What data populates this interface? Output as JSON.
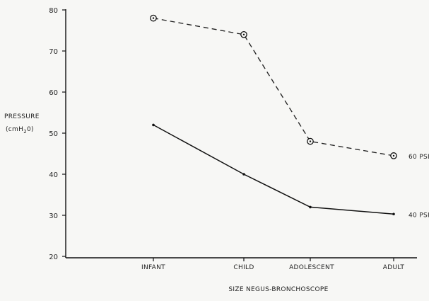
{
  "chart_data": {
    "type": "line",
    "title": "",
    "xlabel": "SIZE  NEGUS-BRONCHOSCOPE",
    "ylabel": "PRESSURE",
    "ylabel_unit_parts": {
      "open": "(cmH",
      "sub": "2",
      "close": "0)"
    },
    "categories": [
      "INFANT",
      "CHILD",
      "ADOLESCENT",
      "ADULT"
    ],
    "ylim": [
      15,
      80
    ],
    "yticks": [
      20,
      30,
      40,
      50,
      60,
      70,
      80
    ],
    "grid": false,
    "series": [
      {
        "name": "60 PSI",
        "values": [
          78,
          74,
          48,
          44.5
        ],
        "line_style": "dashed",
        "marker": "circled-dot",
        "color": "#222222"
      },
      {
        "name": "40 PSI",
        "values": [
          52,
          40,
          32,
          30.3
        ],
        "line_style": "solid",
        "marker": "dot",
        "color": "#111111"
      }
    ]
  }
}
